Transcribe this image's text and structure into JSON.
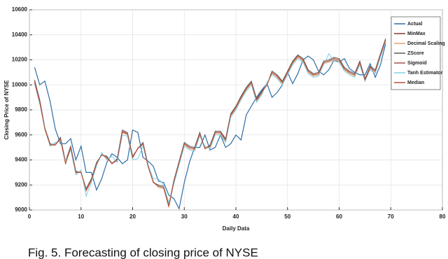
{
  "chart_data": {
    "type": "line",
    "ylabel": "Closing Price of NYSE",
    "xlabel": "Daily Data",
    "caption": "Fig. 5. Forecasting of closing price of NYSE",
    "xlim": [
      0,
      80
    ],
    "xticks": [
      0,
      10,
      20,
      30,
      40,
      50,
      60,
      70,
      80
    ],
    "ylim": [
      9000,
      10600
    ],
    "yticks": [
      9000,
      9200,
      9400,
      9600,
      9800,
      10000,
      10200,
      10400,
      10600
    ],
    "grid": true,
    "legend": "upper right",
    "x": [
      1,
      2,
      3,
      4,
      5,
      6,
      7,
      8,
      9,
      10,
      11,
      12,
      13,
      14,
      15,
      16,
      17,
      18,
      19,
      20,
      21,
      22,
      23,
      24,
      25,
      26,
      27,
      28,
      29,
      30,
      31,
      32,
      33,
      34,
      35,
      36,
      37,
      38,
      39,
      40,
      41,
      42,
      43,
      44,
      45,
      46,
      47,
      48,
      49,
      50,
      51,
      52,
      53,
      54,
      55,
      56,
      57,
      58,
      59,
      60,
      61,
      62,
      63,
      64,
      65,
      66,
      67,
      68,
      69
    ],
    "series": [
      {
        "name": "Actual",
        "color": "#2f6ea6",
        "values": [
          10140,
          10000,
          10030,
          9870,
          9650,
          9530,
          9530,
          9570,
          9400,
          9510,
          9300,
          9300,
          9160,
          9250,
          9380,
          9450,
          9420,
          9370,
          9400,
          9640,
          9620,
          9420,
          9390,
          9350,
          9230,
          9220,
          9120,
          9090,
          9010,
          9220,
          9380,
          9500,
          9500,
          9600,
          9480,
          9500,
          9600,
          9500,
          9530,
          9600,
          9560,
          9760,
          9830,
          9900,
          9960,
          10010,
          9900,
          9940,
          10000,
          10100,
          10010,
          10090,
          10200,
          10230,
          10200,
          10110,
          10080,
          10120,
          10200,
          10180,
          10210,
          10130,
          10100,
          10080,
          10080,
          10170,
          10060,
          10160,
          10330
        ]
      },
      {
        "name": "MinMax",
        "color": "#8b3a2a",
        "values": [
          10030,
          9870,
          9650,
          9520,
          9520,
          9570,
          9380,
          9500,
          9300,
          9300,
          9160,
          9240,
          9370,
          9440,
          9420,
          9370,
          9400,
          9630,
          9610,
          9420,
          9490,
          9530,
          9350,
          9220,
          9190,
          9180,
          9030,
          9230,
          9380,
          9530,
          9500,
          9490,
          9610,
          9490,
          9510,
          9620,
          9620,
          9560,
          9760,
          9820,
          9900,
          9970,
          10020,
          9880,
          9940,
          10000,
          10100,
          10070,
          10020,
          10100,
          10180,
          10230,
          10200,
          10110,
          10080,
          10090,
          10180,
          10190,
          10210,
          10200,
          10130,
          10100,
          10080,
          10180,
          10040,
          10140,
          10110,
          10240,
          10360
        ]
      },
      {
        "name": "Decimal Scaling",
        "color": "#e0a070",
        "values": [
          10020,
          9860,
          9640,
          9520,
          9530,
          9560,
          9370,
          9490,
          9290,
          9310,
          9150,
          9230,
          9360,
          9450,
          9410,
          9380,
          9390,
          9620,
          9600,
          9410,
          9500,
          9520,
          9340,
          9230,
          9180,
          9170,
          9020,
          9220,
          9370,
          9520,
          9490,
          9480,
          9600,
          9500,
          9500,
          9610,
          9610,
          9550,
          9750,
          9810,
          9890,
          9960,
          10010,
          9870,
          9930,
          10010,
          10090,
          10060,
          10010,
          10090,
          10170,
          10220,
          10190,
          10100,
          10070,
          10080,
          10170,
          10180,
          10200,
          10190,
          10120,
          10090,
          10070,
          10170,
          10030,
          10130,
          10100,
          10230,
          10350
        ]
      },
      {
        "name": "ZScore",
        "color": "#5a5a5a",
        "values": [
          10040,
          9880,
          9660,
          9530,
          9520,
          9580,
          9390,
          9510,
          9310,
          9300,
          9170,
          9250,
          9380,
          9440,
          9430,
          9370,
          9410,
          9640,
          9620,
          9430,
          9490,
          9540,
          9360,
          9220,
          9200,
          9190,
          9040,
          9240,
          9390,
          9540,
          9510,
          9500,
          9620,
          9490,
          9520,
          9630,
          9630,
          9570,
          9770,
          9830,
          9910,
          9980,
          10030,
          9890,
          9950,
          10000,
          10110,
          10080,
          10030,
          10110,
          10190,
          10240,
          10210,
          10120,
          10090,
          10100,
          10190,
          10200,
          10220,
          10210,
          10140,
          10110,
          10090,
          10190,
          10050,
          10150,
          10120,
          10250,
          10370
        ]
      },
      {
        "name": "Sigmoid",
        "color": "#a85050",
        "values": [
          10030,
          9870,
          9650,
          9520,
          9520,
          9570,
          9380,
          9500,
          9300,
          9300,
          9160,
          9240,
          9370,
          9440,
          9420,
          9370,
          9400,
          9630,
          9610,
          9420,
          9490,
          9530,
          9350,
          9220,
          9190,
          9180,
          9030,
          9230,
          9380,
          9530,
          9500,
          9490,
          9610,
          9490,
          9510,
          9620,
          9620,
          9560,
          9760,
          9820,
          9900,
          9970,
          10020,
          9880,
          9940,
          10000,
          10100,
          10070,
          10020,
          10100,
          10180,
          10230,
          10200,
          10110,
          10080,
          10090,
          10180,
          10190,
          10210,
          10200,
          10130,
          10100,
          10080,
          10180,
          10040,
          10140,
          10110,
          10240,
          10360
        ]
      },
      {
        "name": "Tanh Estimator",
        "color": "#7fd0e8",
        "values": [
          10010,
          9850,
          9660,
          9510,
          9540,
          9550,
          9390,
          9480,
          9280,
          9320,
          9110,
          9220,
          9350,
          9460,
          9400,
          9430,
          9380,
          9600,
          9590,
          9400,
          9410,
          9510,
          9360,
          9250,
          9250,
          9200,
          9060,
          9210,
          9360,
          9510,
          9480,
          9470,
          9590,
          9510,
          9490,
          9600,
          9600,
          9540,
          9740,
          9800,
          9880,
          9950,
          10000,
          9860,
          9920,
          10020,
          10080,
          10050,
          10000,
          10080,
          10160,
          10210,
          10180,
          10090,
          10060,
          10070,
          10160,
          10250,
          10190,
          10180,
          10110,
          10080,
          10060,
          10160,
          10030,
          10120,
          10090,
          10220,
          10340
        ]
      },
      {
        "name": "Median",
        "color": "#b5523b",
        "values": [
          10020,
          9860,
          9650,
          9520,
          9520,
          9570,
          9370,
          9500,
          9300,
          9300,
          9160,
          9240,
          9370,
          9440,
          9420,
          9370,
          9400,
          9620,
          9610,
          9420,
          9490,
          9530,
          9350,
          9220,
          9190,
          9180,
          9030,
          9230,
          9380,
          9530,
          9500,
          9490,
          9610,
          9490,
          9510,
          9620,
          9620,
          9560,
          9760,
          9820,
          9900,
          9970,
          10020,
          9880,
          9940,
          10000,
          10100,
          10070,
          10020,
          10100,
          10180,
          10230,
          10200,
          10110,
          10080,
          10090,
          10180,
          10190,
          10210,
          10200,
          10130,
          10100,
          10080,
          10180,
          10040,
          10140,
          10110,
          10240,
          10360
        ]
      }
    ]
  }
}
